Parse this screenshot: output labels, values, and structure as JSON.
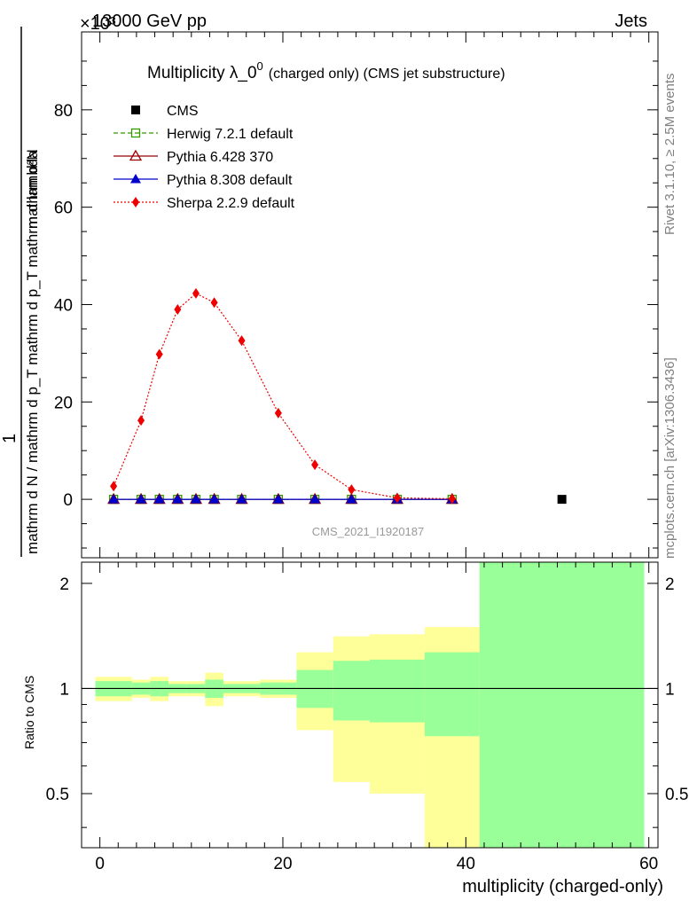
{
  "header": {
    "left": "13000 GeV pp",
    "right": "Jets",
    "exponent": "×10³"
  },
  "side_labels": {
    "rivet": "Rivet 3.1.10, ≥ 2.5M events",
    "mcplots": "mcplots.cern.ch [arXiv:1306.3436]"
  },
  "watermark": "CMS_2021_I1920187",
  "main_plot": {
    "title_main": "Multiplicity λ_0",
    "title_sup": "0",
    "title_rest": "(charged only) (CMS jet substructure)",
    "ylabel_num": "1",
    "ylabel_den": "mathrm d N / mathrm d p_T mathrm d p_T mathrm d lambda",
    "ylabel_num2": "mathrm d²N"
  },
  "ratio_plot": {
    "ylabel": "Ratio to CMS",
    "xlabel": "multiplicity (charged-only)"
  },
  "colors": {
    "herwig": "#339900",
    "pythia6": "#990000",
    "pythia8": "#0000cc",
    "sherpa": "#ee0000",
    "band_inner": "#99ff99",
    "band_outer": "#ffff99"
  },
  "chart_data": [
    {
      "type": "scatter",
      "title": "Multiplicity λ_0^0 (charged only) (CMS jet substructure)",
      "xlim": [
        -2,
        61
      ],
      "ylim": [
        -12,
        96
      ],
      "y_multiplier": "×10³",
      "xticks": [
        0,
        20,
        40,
        60
      ],
      "yticks": [
        0,
        20,
        40,
        60,
        80
      ],
      "legend_position": "top-left",
      "series": [
        {
          "name": "CMS",
          "marker": "square",
          "x": [
            50.5
          ],
          "y": [
            0
          ]
        },
        {
          "name": "Herwig 7.2.1 default",
          "marker": "open-square",
          "line": "dashed",
          "x": [
            1.5,
            4.5,
            6.5,
            8.5,
            10.5,
            12.5,
            15.5,
            19.5,
            23.5,
            27.5,
            32.5,
            38.5
          ],
          "y": [
            0,
            0,
            0,
            0,
            0,
            0,
            0,
            0,
            0,
            0,
            0,
            0
          ]
        },
        {
          "name": "Pythia 6.428 370",
          "marker": "open-triangle",
          "line": "solid",
          "x": [
            1.5,
            4.5,
            6.5,
            8.5,
            10.5,
            12.5,
            15.5,
            19.5,
            23.5,
            27.5,
            32.5,
            38.5
          ],
          "y": [
            0,
            0,
            0,
            0,
            0,
            0,
            0,
            0,
            0,
            0,
            0,
            0
          ]
        },
        {
          "name": "Pythia 8.308 default",
          "marker": "triangle",
          "line": "solid",
          "x": [
            1.5,
            4.5,
            6.5,
            8.5,
            10.5,
            12.5,
            15.5,
            19.5,
            23.5,
            27.5,
            32.5,
            38.5
          ],
          "y": [
            0,
            0,
            0,
            0,
            0,
            0,
            0,
            0,
            0,
            0,
            0,
            0
          ]
        },
        {
          "name": "Sherpa 2.2.9 default",
          "marker": "diamond",
          "line": "dotted",
          "x": [
            1.5,
            4.5,
            6.5,
            8.5,
            10.5,
            12.5,
            15.5,
            19.5,
            23.5,
            27.5,
            32.5,
            38.5
          ],
          "y": [
            2.7,
            16.2,
            29.8,
            39.0,
            42.3,
            40.4,
            32.6,
            17.7,
            7.1,
            2.0,
            0.3,
            0.1
          ]
        }
      ]
    },
    {
      "type": "area",
      "ylabel": "Ratio to CMS",
      "xlabel": "multiplicity (charged-only)",
      "ylim": [
        0.35,
        2.3
      ],
      "xlim": [
        -2,
        61
      ],
      "yticks": [
        0.5,
        1,
        2
      ],
      "xticks": [
        0,
        20,
        40,
        60
      ],
      "reference_line": 1,
      "bins": [
        {
          "lo": -0.5,
          "hi": 3.5,
          "inner": [
            0.95,
            1.05
          ],
          "outer": [
            0.92,
            1.08
          ]
        },
        {
          "lo": 3.5,
          "hi": 5.5,
          "inner": [
            0.96,
            1.04
          ],
          "outer": [
            0.94,
            1.06
          ]
        },
        {
          "lo": 5.5,
          "hi": 7.5,
          "inner": [
            0.95,
            1.05
          ],
          "outer": [
            0.92,
            1.08
          ]
        },
        {
          "lo": 7.5,
          "hi": 9.5,
          "inner": [
            0.97,
            1.03
          ],
          "outer": [
            0.95,
            1.05
          ]
        },
        {
          "lo": 9.5,
          "hi": 11.5,
          "inner": [
            0.97,
            1.03
          ],
          "outer": [
            0.95,
            1.05
          ]
        },
        {
          "lo": 11.5,
          "hi": 13.5,
          "inner": [
            0.94,
            1.06
          ],
          "outer": [
            0.89,
            1.11
          ]
        },
        {
          "lo": 13.5,
          "hi": 17.5,
          "inner": [
            0.97,
            1.03
          ],
          "outer": [
            0.95,
            1.05
          ]
        },
        {
          "lo": 17.5,
          "hi": 21.5,
          "inner": [
            0.96,
            1.04
          ],
          "outer": [
            0.94,
            1.06
          ]
        },
        {
          "lo": 21.5,
          "hi": 25.5,
          "inner": [
            0.88,
            1.13
          ],
          "outer": [
            0.76,
            1.27
          ]
        },
        {
          "lo": 25.5,
          "hi": 29.5,
          "inner": [
            0.81,
            1.2
          ],
          "outer": [
            0.54,
            1.41
          ]
        },
        {
          "lo": 29.5,
          "hi": 35.5,
          "inner": [
            0.8,
            1.21
          ],
          "outer": [
            0.5,
            1.43
          ]
        },
        {
          "lo": 35.5,
          "hi": 41.5,
          "inner": [
            0.73,
            1.27
          ],
          "outer": [
            0.3,
            1.5
          ]
        },
        {
          "lo": 41.5,
          "hi": 59.5,
          "inner": [
            0.3,
            2.3
          ],
          "outer": [
            0.3,
            2.3
          ]
        }
      ]
    }
  ]
}
